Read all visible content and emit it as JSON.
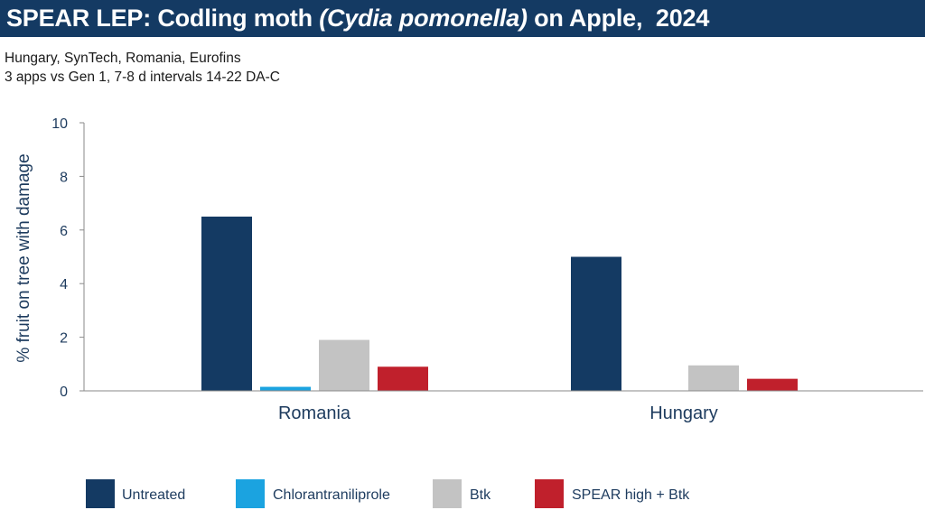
{
  "header": {
    "title_prefix": "SPEAR LEP: Codling moth ",
    "title_italic": "(Cydia pomonella)",
    "title_suffix": " on Apple,  2024"
  },
  "subtitle_lines": [
    "Hungary, SynTech, Romania, Eurofins",
    "3 apps vs Gen 1, 7-8 d intervals 14-22 DA-C"
  ],
  "colors": {
    "header_bg": "#143a63",
    "axis_text": "#1d3b5e"
  },
  "chart_data": {
    "type": "bar",
    "title": "",
    "xlabel": "",
    "ylabel": "% fruit on tree with damage",
    "ylim": [
      0,
      10
    ],
    "yticks": [
      0,
      2,
      4,
      6,
      8,
      10
    ],
    "grid": false,
    "legend_position": "bottom",
    "categories": [
      "Romania",
      "Hungary"
    ],
    "series": [
      {
        "name": "Untreated",
        "color": "#143a63",
        "values": [
          6.5,
          5.0
        ]
      },
      {
        "name": "Chlorantraniliprole",
        "color": "#1ba3e0",
        "values": [
          0.15,
          0
        ]
      },
      {
        "name": "Btk",
        "color": "#c3c3c3",
        "values": [
          1.9,
          0.95
        ]
      },
      {
        "name": "SPEAR high + Btk",
        "color": "#c0202c",
        "values": [
          0.9,
          0.45
        ]
      }
    ]
  }
}
